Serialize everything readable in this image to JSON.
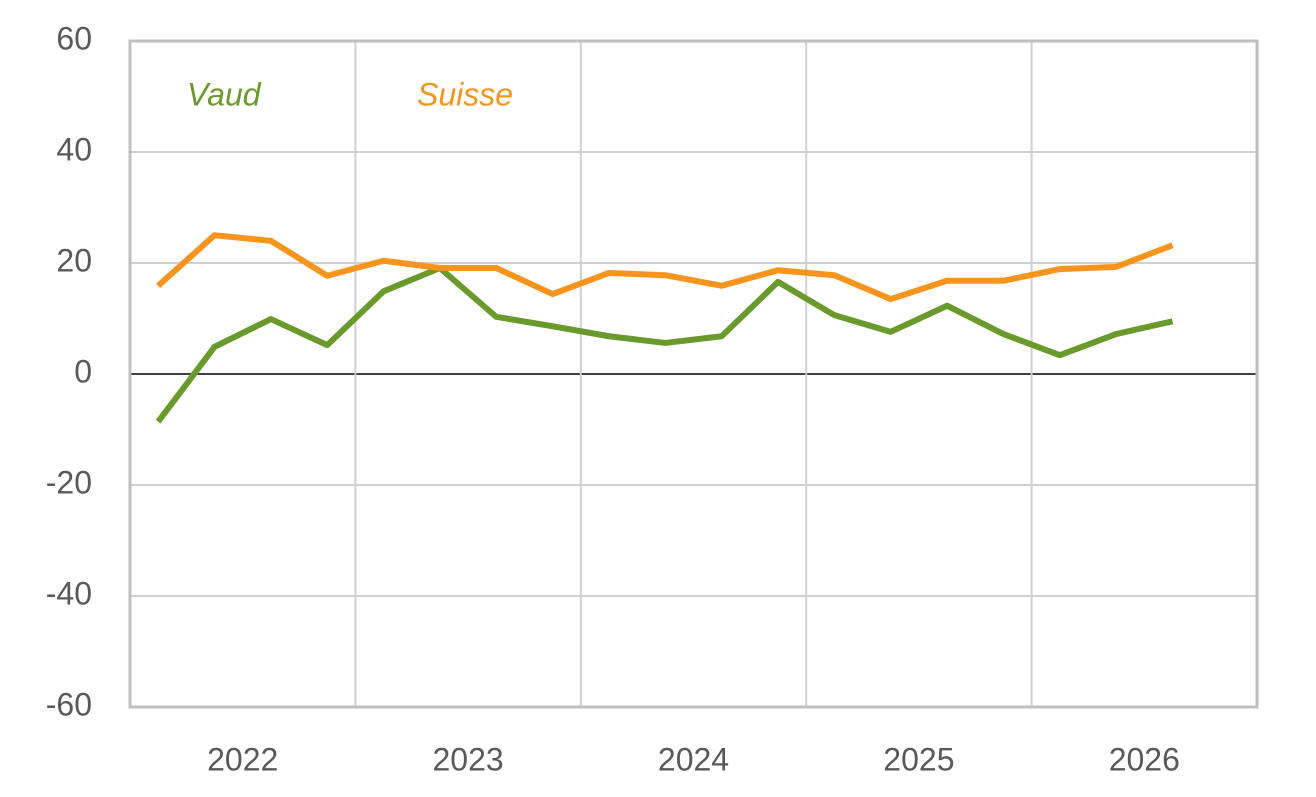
{
  "chart_data": {
    "type": "line",
    "categories": [
      "2022",
      null,
      null,
      null,
      "2023",
      null,
      null,
      null,
      "2024",
      null,
      null,
      null,
      "2025",
      null,
      null,
      null,
      "2026",
      null,
      null,
      null
    ],
    "series": [
      {
        "name": "Vaud",
        "color": "#6a992c",
        "values": [
          -8.6,
          4.9,
          9.9,
          5.2,
          14.9,
          19.1,
          10.3,
          8.6,
          6.8,
          5.6,
          6.8,
          16.6,
          10.6,
          7.6,
          12.3,
          7.2,
          3.4,
          7.2,
          9.5,
          null
        ]
      },
      {
        "name": "Suisse",
        "color": "#f7941d",
        "values": [
          15.9,
          25,
          24,
          17.7,
          20.4,
          19.1,
          19.1,
          14.4,
          18.2,
          17.8,
          15.9,
          18.7,
          17.8,
          13.5,
          16.8,
          16.8,
          18.9,
          19.3,
          23.2,
          null
        ]
      }
    ],
    "ylim": [
      -60,
      60
    ],
    "yticks": [
      -60,
      -40,
      -20,
      0,
      20,
      40,
      60
    ],
    "grid": true
  }
}
